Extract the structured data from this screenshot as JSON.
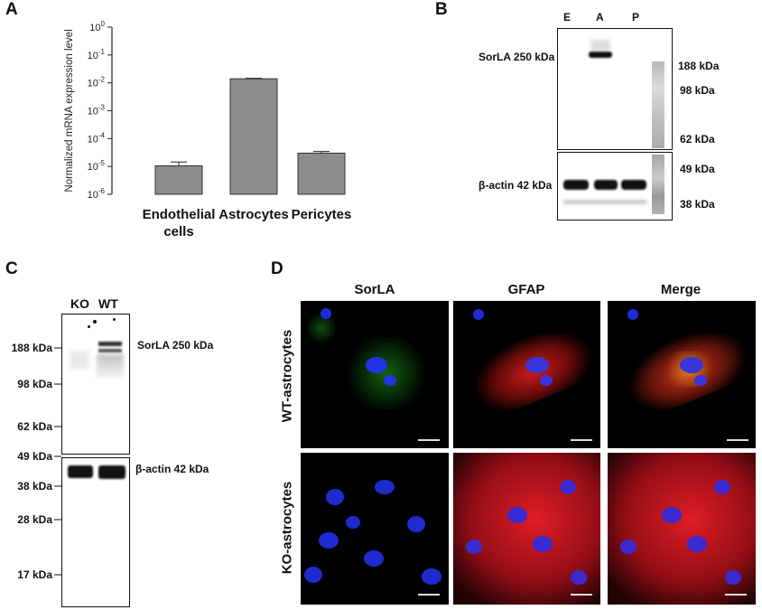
{
  "panels": {
    "a": "A",
    "b": "B",
    "c": "C",
    "d": "D"
  },
  "chart_data": {
    "type": "bar",
    "categories": [
      "Endothelial cells",
      "Astrocytes",
      "Pericytes"
    ],
    "category_lines": [
      [
        "Endothelial",
        "cells"
      ],
      [
        "Astrocytes"
      ],
      [
        "Pericytes"
      ]
    ],
    "values": [
      1.05e-05,
      0.014,
      3e-05
    ],
    "error_upper": [
      1.45e-05,
      0.0146,
      3.45e-05
    ],
    "ylabel": "Normalized mRNA expression level",
    "yscale": "log",
    "ylim": [
      1e-06,
      1
    ],
    "yticks": [
      {
        "base": "10",
        "exp": "0"
      },
      {
        "base": "10",
        "exp": "-1"
      },
      {
        "base": "10",
        "exp": "-2"
      },
      {
        "base": "10",
        "exp": "-3"
      },
      {
        "base": "10",
        "exp": "-4"
      },
      {
        "base": "10",
        "exp": "-5"
      },
      {
        "base": "10",
        "exp": "-6"
      }
    ],
    "bar_color": "#8c8c8c"
  },
  "panel_b": {
    "lanes": [
      "E",
      "A",
      "P"
    ],
    "band_labels": [
      "SorLA 250 kDa",
      "β-actin 42 kDa"
    ],
    "markers": [
      "188 kDa",
      "98 kDa",
      "62 kDa",
      "49 kDa",
      "38 kDa"
    ]
  },
  "panel_c": {
    "lanes": [
      "KO",
      "WT"
    ],
    "band_labels": [
      "SorLA 250 kDa",
      "β-actin 42 kDa"
    ],
    "markers": [
      "188 kDa",
      "98 kDa",
      "62 kDa",
      "49 kDa",
      "38 kDa",
      "28 kDa",
      "17 kDa"
    ]
  },
  "panel_d": {
    "columns": [
      "SorLA",
      "GFAP",
      "Merge"
    ],
    "rows": [
      "WT-astrocytes",
      "KO-astrocytes"
    ]
  }
}
